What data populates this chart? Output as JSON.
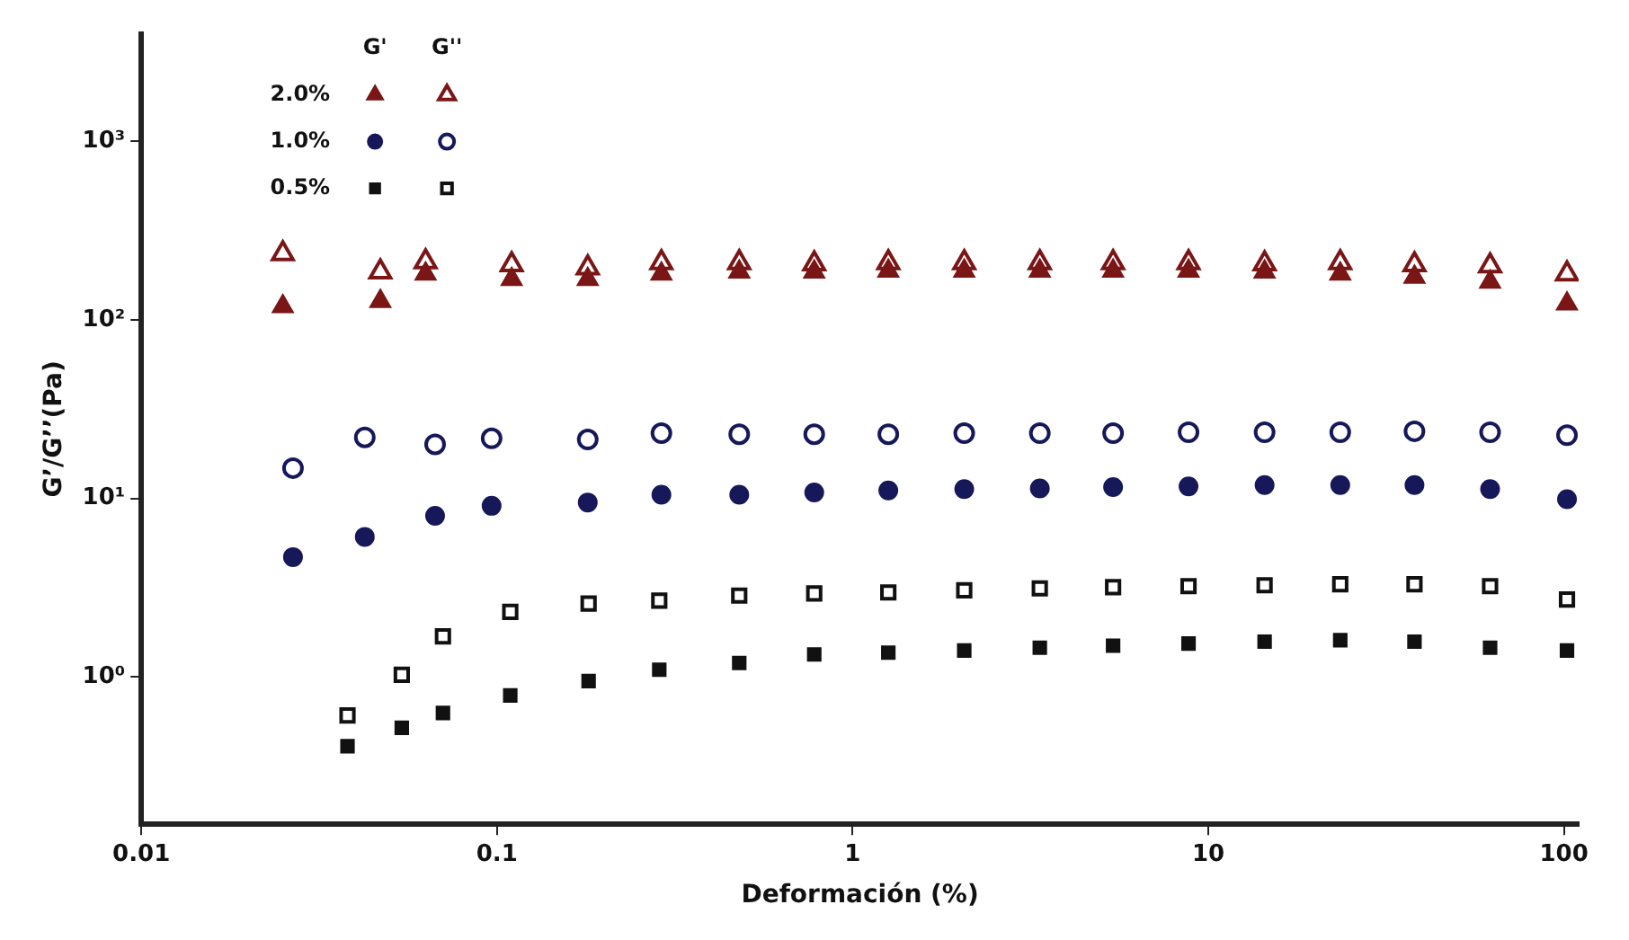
{
  "chart_data": {
    "type": "scatter",
    "xlabel": "Deformación (%)",
    "ylabel": "G’/G’’(Pa)",
    "log": "xy",
    "grid": false,
    "legend": "top left",
    "annotations": [
      "G'",
      "G''"
    ],
    "xlim": [
      0.01,
      110
    ],
    "xticks": [
      0.01,
      0.1,
      1,
      10,
      100
    ],
    "ylim": [
      0.15,
      4000
    ],
    "yticks": [
      {
        "value": 1,
        "label": "10⁰"
      },
      {
        "value": 10,
        "label": "10¹"
      },
      {
        "value": 100,
        "label": "10²"
      },
      {
        "value": 1000,
        "label": "10³"
      }
    ],
    "series": [
      {
        "name": "2.0%",
        "color": "#7a1616",
        "marker": "triangle",
        "x": [
          0.025,
          0.047,
          0.063,
          0.11,
          0.18,
          0.29,
          0.48,
          0.78,
          1.26,
          2.06,
          3.36,
          5.4,
          8.8,
          14.4,
          23.5,
          38,
          62,
          102
        ],
        "values": [
          119,
          127,
          181,
          169,
          169,
          181,
          186,
          186,
          188,
          188,
          188,
          188,
          188,
          186,
          181,
          174,
          163,
          123
        ]
      },
      {
        "color": "#7a1616",
        "marker": "triangle",
        "x": [
          0.025,
          0.047,
          0.063,
          0.11,
          0.18,
          0.29,
          0.48,
          0.78,
          1.26,
          2.06,
          3.36,
          5.4,
          8.8,
          14.4,
          23.5,
          38,
          62,
          102
        ],
        "values": [
          235,
          186,
          212,
          204,
          196,
          209,
          209,
          206,
          209,
          209,
          209,
          209,
          209,
          206,
          209,
          204,
          201,
          181
        ]
      },
      {
        "name": "1.0%",
        "color": "#16185a",
        "marker": "circle",
        "x": [
          0.0267,
          0.0425,
          0.067,
          0.0966,
          0.18,
          0.29,
          0.48,
          0.78,
          1.26,
          2.06,
          3.36,
          5.4,
          8.8,
          14.4,
          23.5,
          38,
          62,
          102
        ],
        "values": [
          4.7,
          6.1,
          8.0,
          9.1,
          9.5,
          10.5,
          10.5,
          10.8,
          11.1,
          11.3,
          11.4,
          11.6,
          11.7,
          11.9,
          11.9,
          11.9,
          11.3,
          9.9
        ]
      },
      {
        "color": "#16185a",
        "marker": "circle",
        "x": [
          0.0267,
          0.0425,
          0.067,
          0.0966,
          0.18,
          0.29,
          0.48,
          0.78,
          1.26,
          2.06,
          3.36,
          5.4,
          8.8,
          14.4,
          23.5,
          38,
          62,
          102
        ],
        "values": [
          14.8,
          22.0,
          20.1,
          21.7,
          21.4,
          23.2,
          22.9,
          22.9,
          22.9,
          23.2,
          23.2,
          23.2,
          23.5,
          23.5,
          23.5,
          23.8,
          23.5,
          22.6
        ]
      },
      {
        "name": "0.5%",
        "color": "#111111",
        "marker": "square",
        "x": [
          0.038,
          0.054,
          0.0705,
          0.109,
          0.181,
          0.286,
          0.48,
          0.78,
          1.26,
          2.06,
          3.36,
          5.4,
          8.8,
          14.4,
          23.5,
          38,
          62,
          102
        ],
        "values": [
          0.41,
          0.52,
          0.63,
          0.79,
          0.95,
          1.1,
          1.2,
          1.34,
          1.37,
          1.41,
          1.46,
          1.5,
          1.54,
          1.58,
          1.61,
          1.58,
          1.46,
          1.41
        ]
      },
      {
        "color": "#111111",
        "marker": "square",
        "x": [
          0.038,
          0.054,
          0.0705,
          0.109,
          0.181,
          0.286,
          0.48,
          0.78,
          1.26,
          2.06,
          3.36,
          5.4,
          8.8,
          14.4,
          23.5,
          38,
          62,
          102
        ],
        "values": [
          0.61,
          1.03,
          1.69,
          2.32,
          2.58,
          2.68,
          2.86,
          2.94,
          2.98,
          3.06,
          3.14,
          3.19,
          3.23,
          3.27,
          3.31,
          3.31,
          3.23,
          2.72
        ]
      }
    ]
  }
}
